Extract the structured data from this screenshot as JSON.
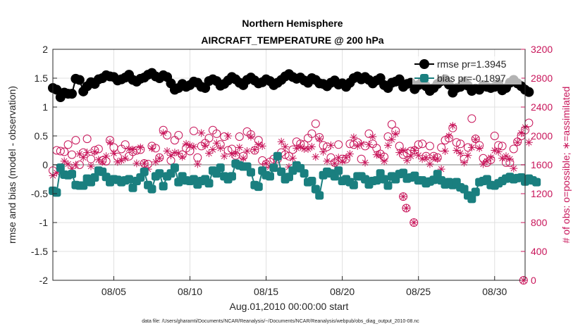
{
  "colors": {
    "rmse": "#000000",
    "bias": "#1a7f7f",
    "obs": "#c8155a",
    "grid": "#e0e0e0",
    "zero": "#bdbdbd"
  },
  "chart_data": {
    "type": "line",
    "title": "Northern Hemisphere",
    "subtitle": "AIRCRAFT_TEMPERATURE @ 200 hPa",
    "xlabel": "Aug.01,2010 00:00:00 start",
    "ylabel_left": "rmse and bias (model - observation)",
    "ylabel_right": "# of obs: o=possible; ∗=assimilated",
    "footnote": "data file: /Users/gharamti/Documents/NCAR/Reanalysis/~/Documents/NCAR/Reanalysis/webpub/obs_diag_output_2010-08.nc",
    "xlim": [
      1.0,
      32.0
    ],
    "ylim_left": [
      -2,
      2
    ],
    "ylim_right": [
      0,
      3200
    ],
    "grid": true,
    "legend_position": "top-right",
    "x_ticks": [
      {
        "value": 5,
        "label": "08/05"
      },
      {
        "value": 10,
        "label": "08/10"
      },
      {
        "value": 15,
        "label": "08/15"
      },
      {
        "value": 20,
        "label": "08/20"
      },
      {
        "value": 25,
        "label": "08/25"
      },
      {
        "value": 30,
        "label": "08/30"
      }
    ],
    "y_ticks_left": [
      "2",
      "1.5",
      "1",
      "0.5",
      "0",
      "-0.5",
      "-1",
      "-1.5",
      "-2"
    ],
    "y_ticks_right": [
      "3200",
      "2800",
      "2400",
      "2000",
      "1600",
      "1200",
      "800",
      "400",
      "0"
    ],
    "x_start": 1.0,
    "x_step": 0.25,
    "series": [
      {
        "name": "rmse pr=1.3945",
        "marker": "filled-circle",
        "values": [
          1.33,
          1.3,
          1.17,
          1.25,
          1.23,
          1.23,
          1.49,
          1.47,
          1.27,
          1.36,
          1.43,
          1.4,
          1.48,
          1.5,
          1.55,
          1.53,
          1.52,
          1.46,
          1.48,
          1.51,
          1.56,
          1.47,
          1.44,
          1.49,
          1.51,
          1.56,
          1.59,
          1.53,
          1.5,
          1.55,
          1.52,
          1.41,
          1.3,
          1.33,
          1.4,
          1.35,
          1.38,
          1.44,
          1.42,
          1.35,
          1.33,
          1.45,
          1.48,
          1.45,
          1.37,
          1.4,
          1.46,
          1.52,
          1.48,
          1.42,
          1.38,
          1.47,
          1.51,
          1.46,
          1.41,
          1.43,
          1.48,
          1.45,
          1.38,
          1.42,
          1.47,
          1.53,
          1.57,
          1.52,
          1.49,
          1.51,
          1.46,
          1.42,
          1.5,
          1.47,
          1.41,
          1.4,
          1.36,
          1.42,
          1.46,
          1.39,
          1.41,
          1.35,
          1.42,
          1.5,
          1.53,
          1.48,
          1.52,
          1.47,
          1.41,
          1.46,
          1.5,
          1.38,
          1.33,
          1.42,
          1.44,
          1.48,
          1.35,
          1.4,
          1.42,
          1.31,
          1.38,
          1.44,
          1.36,
          1.28,
          1.33,
          1.4,
          1.45,
          1.48,
          1.39,
          1.25,
          1.33,
          1.35,
          1.43,
          1.37,
          1.28,
          1.32,
          1.3,
          1.38,
          1.35,
          1.33,
          1.35,
          1.4,
          1.29,
          1.33,
          1.42,
          1.47,
          1.41,
          1.36,
          1.3,
          1.26
        ]
      },
      {
        "name": "bias pr=-0.1897",
        "marker": "filled-square",
        "values": [
          -0.45,
          -0.48,
          -0.05,
          -0.17,
          -0.18,
          -0.16,
          -0.35,
          -0.36,
          -0.36,
          -0.24,
          -0.3,
          -0.22,
          -0.1,
          -0.12,
          -0.21,
          -0.3,
          -0.25,
          -0.26,
          -0.3,
          -0.27,
          -0.25,
          -0.4,
          -0.28,
          -0.22,
          -0.12,
          -0.35,
          -0.42,
          -0.2,
          -0.15,
          -0.37,
          -0.2,
          -0.15,
          -0.05,
          -0.3,
          -0.2,
          -0.27,
          -0.28,
          -0.25,
          -0.34,
          -0.28,
          -0.25,
          -0.32,
          -0.1,
          -0.15,
          -0.05,
          -0.2,
          -0.25,
          -0.2,
          0.02,
          -0.01,
          -0.03,
          -0.03,
          -0.13,
          -0.35,
          -0.38,
          -0.1,
          -0.18,
          -0.2,
          -0.05,
          0.15,
          -0.12,
          -0.25,
          -0.21,
          -0.1,
          -0.01,
          -0.06,
          -0.15,
          -0.3,
          -0.28,
          -0.42,
          -0.53,
          -0.18,
          -0.12,
          -0.15,
          -0.2,
          -0.1,
          -0.28,
          -0.25,
          -0.3,
          -0.35,
          -0.2,
          -0.2,
          -0.25,
          -0.34,
          -0.28,
          -0.27,
          -0.15,
          -0.25,
          -0.36,
          -0.2,
          -0.25,
          -0.16,
          -0.14,
          -0.24,
          -0.22,
          -0.19,
          -0.27,
          -0.27,
          -0.32,
          -0.29,
          -0.26,
          -0.16,
          -0.27,
          -0.34,
          -0.3,
          -0.35,
          -0.3,
          -0.39,
          -0.42,
          -0.53,
          -0.59,
          -0.47,
          -0.3,
          -0.28,
          -0.25,
          -0.35,
          -0.36,
          -0.32,
          -0.28,
          -0.24,
          -0.21,
          -0.25,
          -0.23,
          -0.22,
          -0.29,
          -0.24,
          -0.27,
          -0.3
        ]
      },
      {
        "name": "possible obs",
        "marker": "open-circle",
        "axis": "right",
        "values": [
          1520,
          1800,
          1790,
          1780,
          1880,
          1740,
          1940,
          1600,
          1770,
          1960,
          1680,
          1800,
          1820,
          1660,
          1650,
          1940,
          1840,
          1710,
          1820,
          1880,
          1720,
          1780,
          1800,
          1810,
          1620,
          1610,
          1860,
          1830,
          1700,
          2080,
          2010,
          1660,
          1940,
          2010,
          1740,
          1830,
          1790,
          2070,
          1700,
          1860,
          1900,
          1970,
          2080,
          2030,
          1880,
          1990,
          1800,
          1820,
          1730,
          1990,
          1720,
          2060,
          2020,
          1800,
          1940,
          1660,
          1610,
          1640,
          1680,
          1680,
          1770,
          1740,
          1720,
          1810,
          1920,
          1890,
          1880,
          1970,
          2030,
          2170,
          1980,
          1870,
          1850,
          1700,
          1630,
          1880,
          1680,
          1680,
          1890,
          1880,
          1910,
          1680,
          1860,
          2030,
          1890,
          1830,
          1750,
          1710,
          1990,
          2160,
          2070,
          1860,
          1740,
          1760,
          1790,
          1800,
          1880,
          1890,
          1720,
          1860,
          1720,
          1700,
          1840,
          1940,
          1970,
          2110,
          1910,
          1890,
          1680,
          1840,
          2240,
          1960,
          1870,
          1690,
          1630,
          1670,
          2000,
          1870,
          1860,
          1630,
          1630,
          1820,
          1920,
          2000,
          2080,
          2180
        ]
      },
      {
        "name": "assimilated obs",
        "marker": "asterisk",
        "axis": "right",
        "values": [
          1450,
          1490,
          1530,
          1650,
          1610,
          1550,
          1600,
          1750,
          1700,
          1770,
          1580,
          1780,
          1670,
          1640,
          1720,
          1910,
          1760,
          1640,
          1660,
          1690,
          1820,
          1810,
          1620,
          1840,
          1620,
          1540,
          1830,
          1640,
          1690,
          2040,
          1790,
          1730,
          1770,
          1760,
          1710,
          1890,
          1870,
          1850,
          1610,
          2040,
          1870,
          1760,
          1810,
          1900,
          1830,
          1720,
          2000,
          1750,
          1760,
          1840,
          1690,
          1790,
          1990,
          1810,
          1880,
          1860,
          1620,
          1570,
          1580,
          1540,
          1920,
          1850,
          1570,
          1690,
          1830,
          1850,
          1820,
          1820,
          1850,
          1710,
          1960,
          1780,
          1650,
          1870,
          1620,
          1700,
          1650,
          1700,
          1750,
          1980,
          1860,
          1890,
          1630,
          1880,
          1990,
          1740,
          1730,
          1650,
          1870,
          1950,
          2030,
          1770,
          1800,
          1660,
          1720,
          1800,
          1730,
          1680,
          1700,
          1610,
          1700,
          1680,
          1540,
          1790,
          2000,
          2140,
          1800,
          1760,
          1630,
          1730,
          1840,
          1950,
          1830,
          1610,
          1650,
          1700,
          1800,
          1780,
          1690,
          1720,
          1680,
          1550,
          1910,
          2040,
          2120,
          1910
        ]
      }
    ],
    "obs_outliers": [
      {
        "x": 24.0,
        "value": 1160,
        "kind": "possible"
      },
      {
        "x": 24.2,
        "value": 1000,
        "kind": "possible"
      },
      {
        "x": 24.7,
        "value": 800,
        "kind": "possible"
      },
      {
        "x": 31.9,
        "value": 0,
        "kind": "possible"
      }
    ]
  }
}
